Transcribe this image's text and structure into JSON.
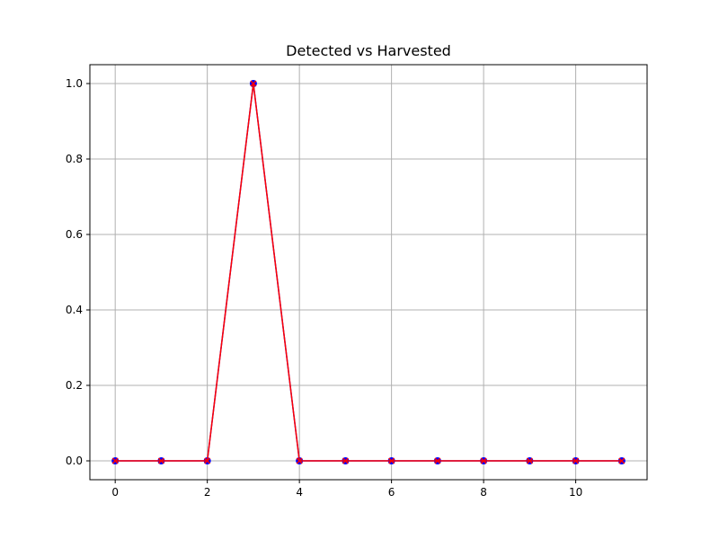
{
  "chart_data": {
    "type": "line",
    "title": "Detected vs Harvested",
    "xlabel": "",
    "ylabel": "",
    "xlim": [
      -0.55,
      11.55
    ],
    "ylim": [
      -0.05,
      1.05
    ],
    "grid": true,
    "xticks": [
      0,
      2,
      4,
      6,
      8,
      10
    ],
    "xtick_labels": [
      "0",
      "2",
      "4",
      "6",
      "8",
      "10"
    ],
    "yticks": [
      0.0,
      0.2,
      0.4,
      0.6,
      0.8,
      1.0
    ],
    "ytick_labels": [
      "0.0",
      "0.2",
      "0.4",
      "0.6",
      "0.8",
      "1.0"
    ],
    "x": [
      0,
      1,
      2,
      3,
      4,
      5,
      6,
      7,
      8,
      9,
      10,
      11
    ],
    "series": [
      {
        "values": [
          0,
          0,
          0,
          1,
          0,
          0,
          0,
          0,
          0,
          0,
          0,
          0
        ],
        "color": "#0000ff",
        "marker": "circle",
        "line": true
      },
      {
        "values": [
          0,
          0,
          0,
          1,
          0,
          0,
          0,
          0,
          0,
          0,
          0,
          0
        ],
        "color": "#ff0000",
        "marker": "x",
        "line": true
      }
    ],
    "grid_color": "#b0b0b0"
  }
}
